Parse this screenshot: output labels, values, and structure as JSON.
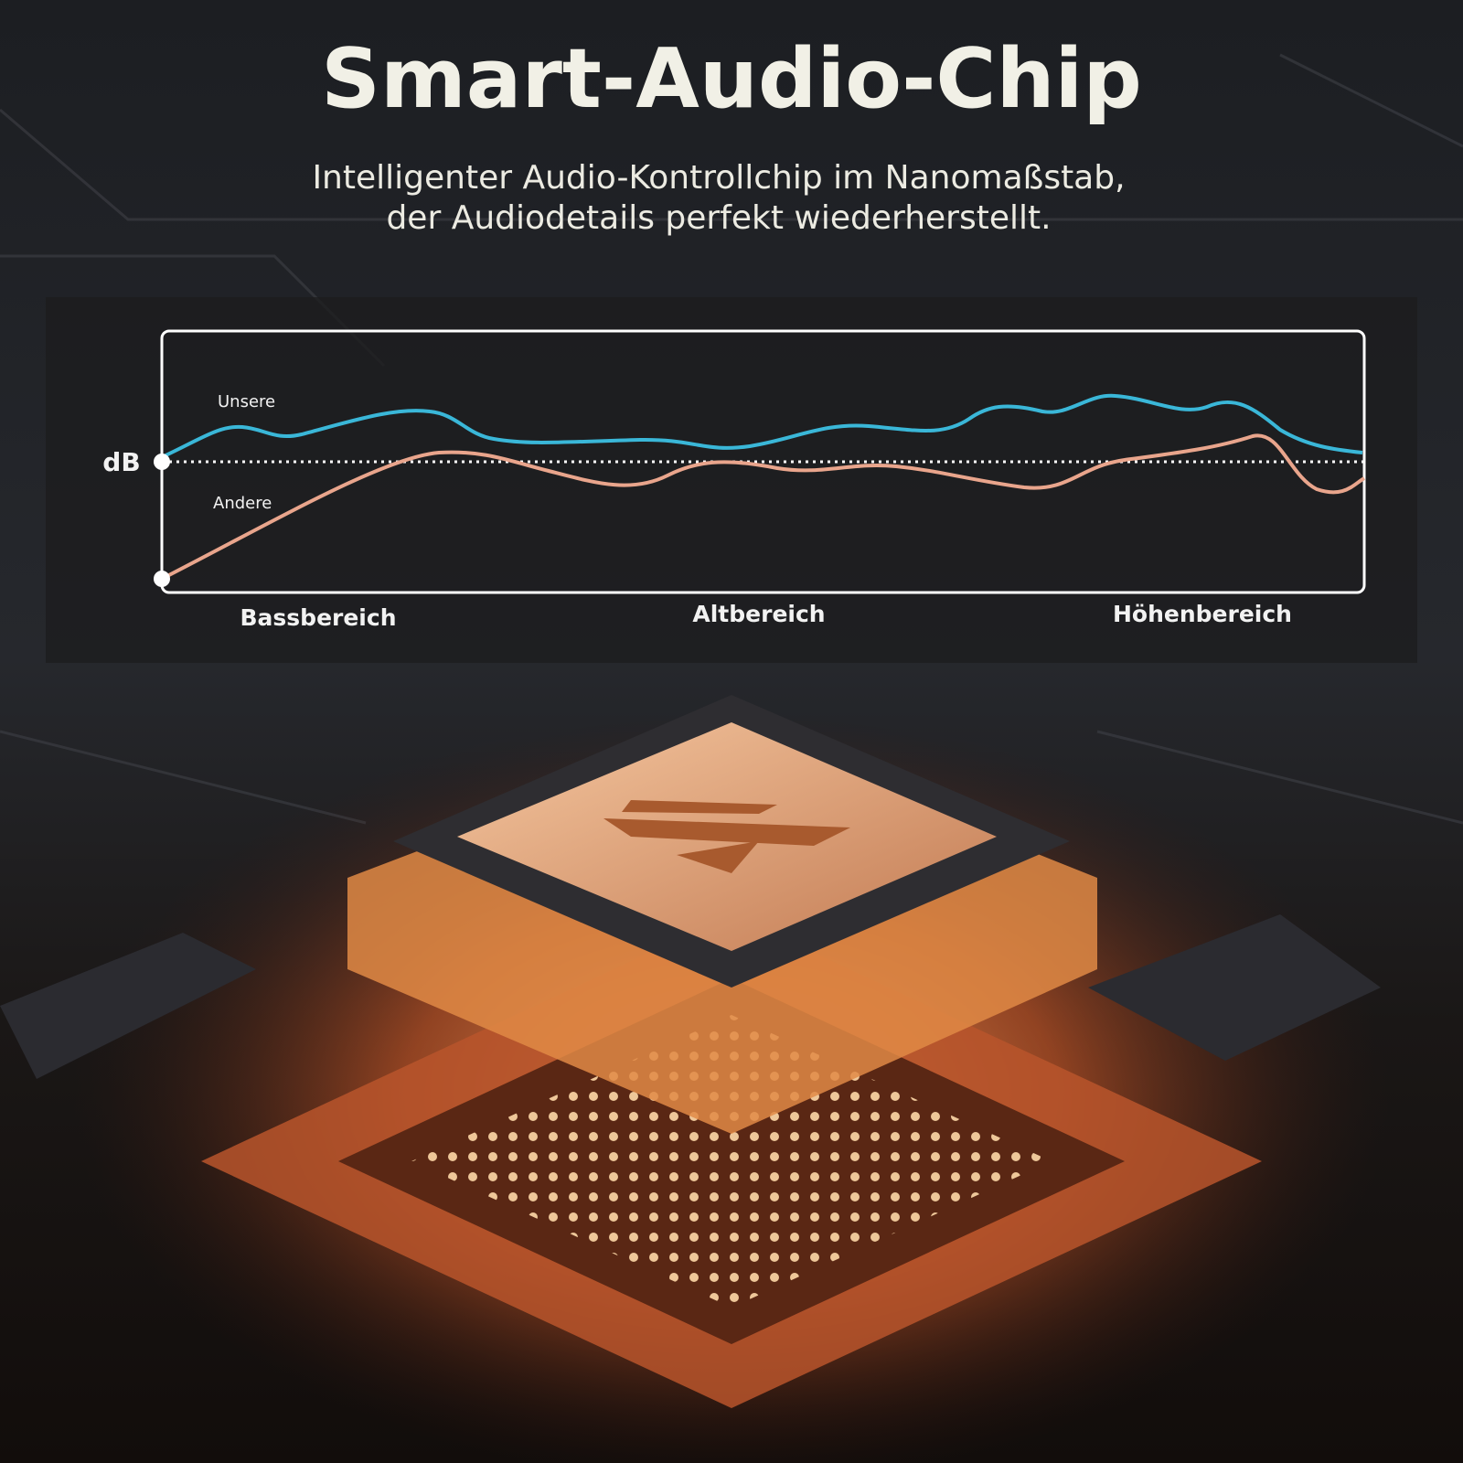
{
  "header": {
    "title": "Smart-Audio-Chip",
    "subtitle": [
      "Intelligenter Audio-Kontrollchip im Nanomaßstab,",
      "der Audiodetails perfekt wiederherstellt."
    ]
  },
  "graph": {
    "y_label": "dB",
    "series_labels": [
      "Unsere",
      "Andere"
    ],
    "regions": [
      "Bassbereich",
      "Altbereich",
      "Höhenbereich"
    ]
  }
}
